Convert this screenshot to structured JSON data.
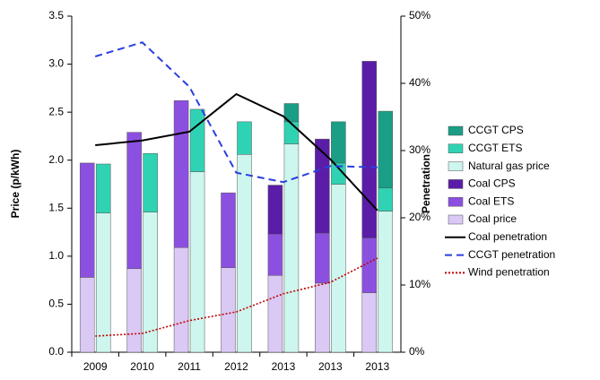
{
  "chart_data": {
    "type": "bar",
    "categories": [
      "2009",
      "2010",
      "2011",
      "2012",
      "2013",
      "2013",
      "2013"
    ],
    "y_label": "Price (p/kWh)",
    "y2_label": "Penetration",
    "ylim": [
      0,
      3.5
    ],
    "yticks": [
      {
        "value": 0,
        "label": "0.0"
      },
      0.5,
      {
        "value": 1,
        "label": "1.0"
      },
      1.5,
      {
        "value": 2,
        "label": "2.0"
      },
      2.5,
      {
        "value": 3,
        "label": "3.0"
      },
      3.5
    ],
    "y2lim": [
      0,
      50
    ],
    "y2ticks": [
      {
        "value": 0,
        "label": "0%"
      },
      {
        "value": 10,
        "label": "10%"
      },
      {
        "value": 20,
        "label": "20%"
      },
      {
        "value": 30,
        "label": "30%"
      },
      {
        "value": 40,
        "label": "40%"
      },
      {
        "value": 50,
        "label": "50%"
      }
    ],
    "legend": "right",
    "series": [
      {
        "name": "CCGT CPS",
        "type": "bar",
        "stack": "gas",
        "color": "#1a9e85",
        "values": [
          0,
          0,
          0,
          0,
          0.19,
          0.43,
          0.8
        ]
      },
      {
        "name": "CCGT ETS",
        "type": "bar",
        "stack": "gas",
        "color": "#2fd3b3",
        "values": [
          0.51,
          0.61,
          0.65,
          0.34,
          0.23,
          0.22,
          0.24
        ]
      },
      {
        "name": "Natural gas price",
        "type": "bar",
        "stack": "gas",
        "color": "#cdf6ee",
        "values": [
          1.45,
          1.46,
          1.88,
          2.06,
          2.17,
          1.75,
          1.47
        ]
      },
      {
        "name": "Coal CPS",
        "type": "bar",
        "stack": "coal",
        "color": "#5b1ca8",
        "values": [
          0,
          0,
          0,
          0,
          0.51,
          0.98,
          1.84
        ]
      },
      {
        "name": "Coal ETS",
        "type": "bar",
        "stack": "coal",
        "color": "#8b50e0",
        "values": [
          1.19,
          1.42,
          1.53,
          0.78,
          0.43,
          0.52,
          0.57
        ]
      },
      {
        "name": "Coal price",
        "type": "bar",
        "stack": "coal",
        "color": "#dac8f5",
        "values": [
          0.78,
          0.87,
          1.09,
          0.88,
          0.8,
          0.72,
          0.62
        ]
      },
      {
        "name": "Coal penetration",
        "type": "line",
        "axis": "y2",
        "dash": "solid",
        "color": "#000000",
        "values": [
          30.8,
          31.5,
          32.8,
          38.4,
          35.1,
          28.7,
          21.1
        ]
      },
      {
        "name": "CCGT penetration",
        "type": "line",
        "axis": "y2",
        "dash": "dashed",
        "color": "#2a3fe0",
        "values": [
          44.0,
          46.1,
          39.5,
          26.7,
          25.3,
          27.7,
          27.5
        ]
      },
      {
        "name": "Wind penetration",
        "type": "line",
        "axis": "y2",
        "dash": "dotted",
        "color": "#c00000",
        "values": [
          2.4,
          2.8,
          4.7,
          6.0,
          8.7,
          10.4,
          14.0
        ]
      }
    ]
  }
}
